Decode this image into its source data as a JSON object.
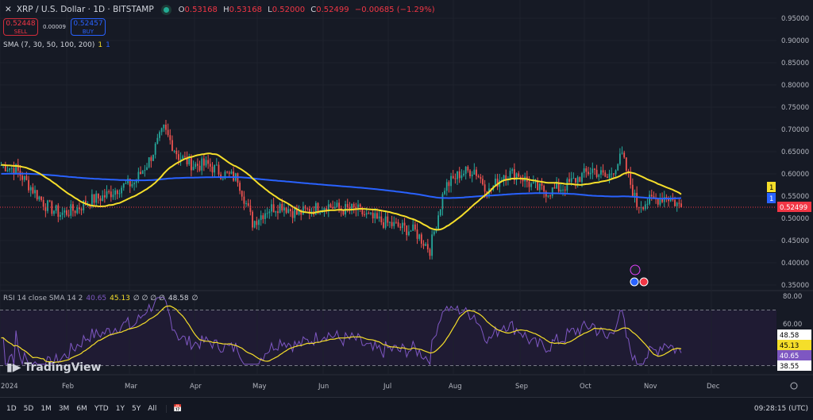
{
  "header": {
    "close_icon": "x-icon",
    "title": "XRP / U.S. Dollar · 1D · BITSTAMP",
    "status_color": "#22ab94",
    "ohlc": [
      {
        "k": "O",
        "v": "0.53168"
      },
      {
        "k": "H",
        "v": "0.53168"
      },
      {
        "k": "L",
        "v": "0.52000"
      },
      {
        "k": "C",
        "v": "0.52499"
      }
    ],
    "change": "−0.00685 (−1.29%)"
  },
  "trade": {
    "sell_price": "0.52448",
    "sell_label": "SELL",
    "spread": "0.00009",
    "buy_price": "0.52457",
    "buy_label": "BUY"
  },
  "indicator": {
    "label": "SMA (7, 30, 50, 100, 200)",
    "v1": "1",
    "v2": "1"
  },
  "rsi": {
    "label": "RSI 14 close SMA 14 2",
    "rsi": "40.65",
    "sma": "45.13",
    "empties": "∅ ∅ ∅ ∅",
    "upper": "48.58",
    "last": "∅"
  },
  "price_axis": {
    "ticks": [
      "0.95000",
      "0.90000",
      "0.85000",
      "0.80000",
      "0.75000",
      "0.70000",
      "0.65000",
      "0.60000",
      "0.55000",
      "0.50000",
      "0.45000",
      "0.40000",
      "0.35000"
    ],
    "badge_sma_yellow": "1",
    "badge_sma_blue": "1",
    "last_price": "0.52499"
  },
  "rsi_axis": {
    "ticks": [
      "80.00",
      "60.00"
    ],
    "badges": [
      "48.58",
      "45.13",
      "40.65",
      "38.55"
    ]
  },
  "time_axis": {
    "labels": [
      "2024",
      "Feb",
      "Mar",
      "Apr",
      "May",
      "Jun",
      "Jul",
      "Aug",
      "Sep",
      "Oct",
      "Nov",
      "Dec"
    ]
  },
  "logo": "TradingView",
  "bottom": {
    "ranges": [
      "1D",
      "5D",
      "1M",
      "3M",
      "6M",
      "YTD",
      "1Y",
      "5Y",
      "All"
    ],
    "clock": "09:28:15 (UTC)"
  },
  "colors": {
    "up": "#26a69a",
    "down": "#ef5350",
    "sma_short": "#f5de2a",
    "sma_long": "#2962ff",
    "rsi": "#7e57c2",
    "rsi_sma": "#f5de2a",
    "last_price": "#f23645"
  },
  "chart_data": {
    "type": "candlestick",
    "symbol": "XRP/USD",
    "interval": "1D",
    "weekly_closes": [
      0.62,
      0.61,
      0.57,
      0.53,
      0.51,
      0.52,
      0.54,
      0.55,
      0.57,
      0.58,
      0.63,
      0.7,
      0.64,
      0.62,
      0.62,
      0.6,
      0.59,
      0.49,
      0.52,
      0.53,
      0.51,
      0.52,
      0.53,
      0.52,
      0.52,
      0.5,
      0.49,
      0.48,
      0.47,
      0.43,
      0.57,
      0.6,
      0.61,
      0.56,
      0.6,
      0.6,
      0.57,
      0.56,
      0.57,
      0.59,
      0.61,
      0.59,
      0.64,
      0.53,
      0.54,
      0.55,
      0.525
    ],
    "ylim": [
      0.35,
      0.95
    ],
    "rsi_ylim": [
      30,
      80
    ],
    "rsi_bands": [
      30,
      70
    ]
  }
}
